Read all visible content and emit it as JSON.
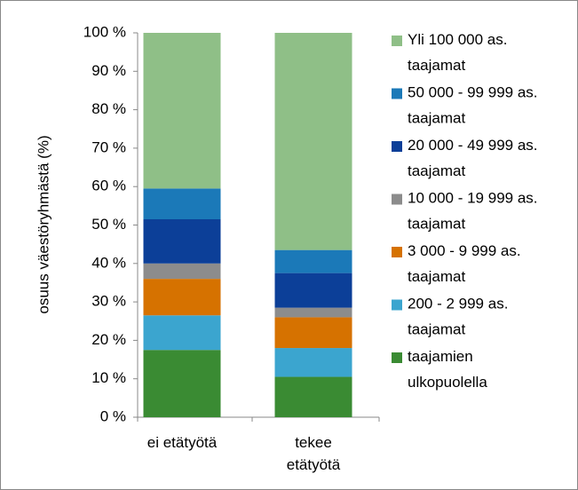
{
  "chart_data": {
    "type": "stacked_bar",
    "categories": [
      "ei etätyötä",
      "tekee etätyötä"
    ],
    "y_label": "osuus väestöryhmästä (%)",
    "ylim": [
      0,
      100
    ],
    "yticks": [
      {
        "value": 0,
        "label": "0 %"
      },
      {
        "value": 10,
        "label": "10 %"
      },
      {
        "value": 20,
        "label": "20 %"
      },
      {
        "value": 30,
        "label": "30 %"
      },
      {
        "value": 40,
        "label": "40 %"
      },
      {
        "value": 50,
        "label": "50 %"
      },
      {
        "value": 60,
        "label": "60 %"
      },
      {
        "value": 70,
        "label": "70 %"
      },
      {
        "value": 80,
        "label": "80 %"
      },
      {
        "value": 90,
        "label": "90 %"
      },
      {
        "value": 100,
        "label": "100 %"
      }
    ],
    "grid": true,
    "legend": "right",
    "series": [
      {
        "name": "taajamien ulkopuolella",
        "color": "#3a8b33",
        "values": [
          17.5,
          10.5
        ]
      },
      {
        "name": "200 - 2 999 as. taajamat",
        "color": "#3ba5cf",
        "values": [
          9,
          7.5
        ]
      },
      {
        "name": "3 000 - 9 999 as. taajamat",
        "color": "#d67200",
        "values": [
          9.5,
          8
        ]
      },
      {
        "name": "10 000 - 19 999 as. taajamat",
        "color": "#8c8c8c",
        "values": [
          4,
          2.5
        ]
      },
      {
        "name": "20 000 - 49 999 as. taajamat",
        "color": "#0c3f98",
        "values": [
          11.5,
          9
        ]
      },
      {
        "name": "50 000 - 99 999 as. taajamat",
        "color": "#1b79b8",
        "values": [
          8,
          6
        ]
      },
      {
        "name": "Yli 100 000 as. taajamat",
        "color": "#8fbf87",
        "values": [
          40.5,
          56.5
        ]
      }
    ]
  }
}
